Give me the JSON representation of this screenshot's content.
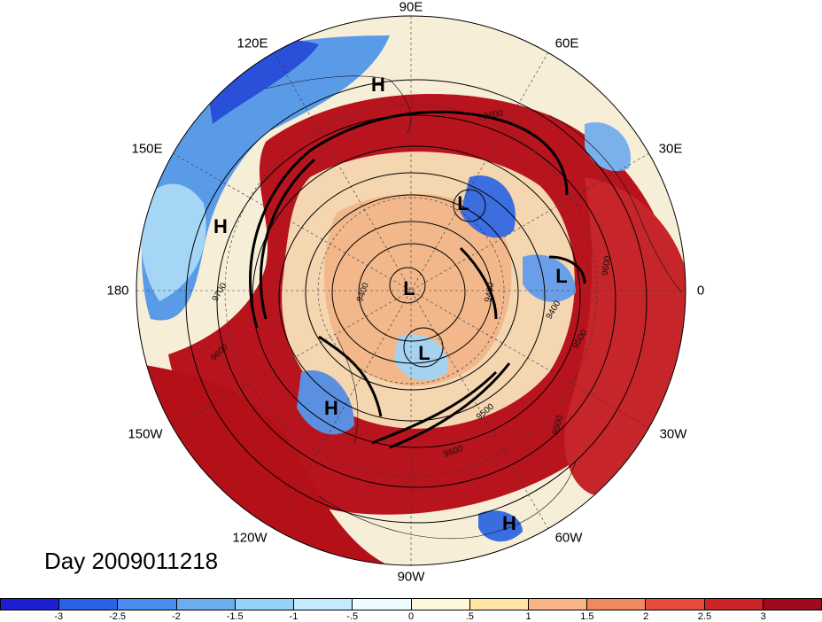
{
  "map": {
    "projection": "north polar stereographic",
    "longitude_labels": [
      {
        "key": "90E",
        "text": "90E"
      },
      {
        "key": "60E",
        "text": "60E"
      },
      {
        "key": "30E",
        "text": "30E"
      },
      {
        "key": "0",
        "text": "0"
      },
      {
        "key": "30W",
        "text": "30W"
      },
      {
        "key": "60W",
        "text": "60W"
      },
      {
        "key": "90W",
        "text": "90W"
      },
      {
        "key": "120W",
        "text": "120W"
      },
      {
        "key": "150W",
        "text": "150W"
      },
      {
        "key": "180",
        "text": "180"
      },
      {
        "key": "150E",
        "text": "150E"
      },
      {
        "key": "120E",
        "text": "120E"
      }
    ],
    "pressure_centers": [
      "H",
      "H",
      "H",
      "H",
      "L",
      "L",
      "L",
      "L"
    ],
    "contour_labels": [
      "9700",
      "9600",
      "9600",
      "9600",
      "9600",
      "9500",
      "9500",
      "9500",
      "9400",
      "9400",
      "9400"
    ],
    "contour_variable": "geopotential height",
    "shading": {
      "colors": {
        "strong_negative": "#1a1ad0",
        "negative": "#6aaef0",
        "near_zero": "#ffffff",
        "positive": "#f09060",
        "strong_positive": "#a00a1a"
      }
    }
  },
  "title": "Day 2009011218",
  "colorbar": {
    "colors": [
      "#1e1ed2",
      "#2a62e6",
      "#4a8cf0",
      "#6aaef0",
      "#96d2f8",
      "#c2ecfc",
      "#eefcff",
      "#fff8d8",
      "#ffe4a4",
      "#f8b482",
      "#f08860",
      "#e84c3c",
      "#cc2428",
      "#a00a1a"
    ],
    "ticks": [
      "-3",
      "-2.5",
      "-2",
      "-1.5",
      "-1",
      "-.5",
      "0",
      ".5",
      "1",
      "1.5",
      "2",
      "2.5",
      "3"
    ]
  }
}
